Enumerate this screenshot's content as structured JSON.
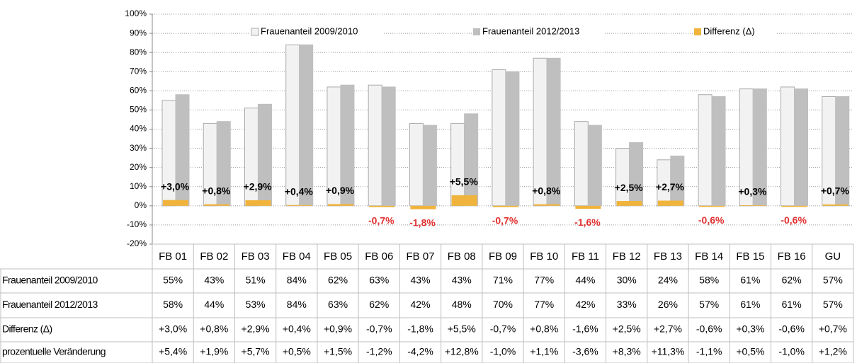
{
  "chart_data": {
    "type": "bar",
    "categories": [
      "FB 01",
      "FB 02",
      "FB 03",
      "FB 04",
      "FB 05",
      "FB 06",
      "FB 07",
      "FB 08",
      "FB 09",
      "FB 10",
      "FB 11",
      "FB 12",
      "FB 13",
      "FB 14",
      "FB 15",
      "FB 16",
      "GU"
    ],
    "series": [
      {
        "name": "Frauenanteil 2009/2010",
        "color": "#f2f2f2",
        "values": [
          55,
          43,
          51,
          84,
          62,
          63,
          43,
          43,
          71,
          77,
          44,
          30,
          24,
          58,
          61,
          62,
          57
        ],
        "value_labels": [
          "55%",
          "43%",
          "51%",
          "84%",
          "62%",
          "63%",
          "43%",
          "43%",
          "71%",
          "77%",
          "44%",
          "30%",
          "24%",
          "58%",
          "61%",
          "62%",
          "57%"
        ]
      },
      {
        "name": "Frauenanteil 2012/2013",
        "color": "#bfbfbf",
        "values": [
          58,
          44,
          53,
          84,
          63,
          62,
          42,
          48,
          70,
          77,
          42,
          33,
          26,
          57,
          61,
          61,
          57
        ],
        "value_labels": [
          "58%",
          "44%",
          "53%",
          "84%",
          "63%",
          "62%",
          "42%",
          "48%",
          "70%",
          "77%",
          "42%",
          "33%",
          "26%",
          "57%",
          "61%",
          "61%",
          "57%"
        ]
      },
      {
        "name": "Differenz (Δ)",
        "color": "#f0b43c",
        "values": [
          3.0,
          0.8,
          2.9,
          0.4,
          0.9,
          -0.7,
          -1.8,
          5.5,
          -0.7,
          0.8,
          -1.6,
          2.5,
          2.7,
          -0.6,
          0.3,
          -0.6,
          0.7
        ],
        "value_labels": [
          "+3,0%",
          "+0,8%",
          "+2,9%",
          "+0,4%",
          "+0,9%",
          "-0,7%",
          "-1,8%",
          "+5,5%",
          "-0,7%",
          "+0,8%",
          "-1,6%",
          "+2,5%",
          "+2,7%",
          "-0,6%",
          "+0,3%",
          "-0,6%",
          "+0,7%"
        ]
      }
    ],
    "table_extra_row": {
      "name": "prozentuelle Veränderung",
      "values": [
        5.4,
        1.9,
        5.7,
        0.5,
        1.5,
        -1.2,
        -4.2,
        12.8,
        -1.0,
        1.1,
        -3.6,
        8.3,
        11.3,
        -1.1,
        0.5,
        -1.0,
        1.2
      ],
      "value_labels": [
        "+5,4%",
        "+1,9%",
        "+5,7%",
        "+0,5%",
        "+1,5%",
        "-1,2%",
        "-4,2%",
        "+12,8%",
        "-1,0%",
        "+1,1%",
        "-3,6%",
        "+8,3%",
        "+11,3%",
        "-1,1%",
        "+0,5%",
        "-1,0%",
        "+1,2%"
      ]
    },
    "ylim": [
      -20,
      100
    ],
    "yticks": [
      {
        "value": -20,
        "label": "-20%"
      },
      {
        "value": -10,
        "label": "-10%"
      },
      {
        "value": 0,
        "label": "0%"
      },
      {
        "value": 10,
        "label": "10%"
      },
      {
        "value": 20,
        "label": "20%"
      },
      {
        "value": 30,
        "label": "30%"
      },
      {
        "value": 40,
        "label": "40%"
      },
      {
        "value": 50,
        "label": "50%"
      },
      {
        "value": 60,
        "label": "60%"
      },
      {
        "value": 70,
        "label": "70%"
      },
      {
        "value": 80,
        "label": "80%"
      },
      {
        "value": 90,
        "label": "90%"
      },
      {
        "value": 100,
        "label": "100%"
      }
    ],
    "grid": true,
    "legend": "top"
  }
}
